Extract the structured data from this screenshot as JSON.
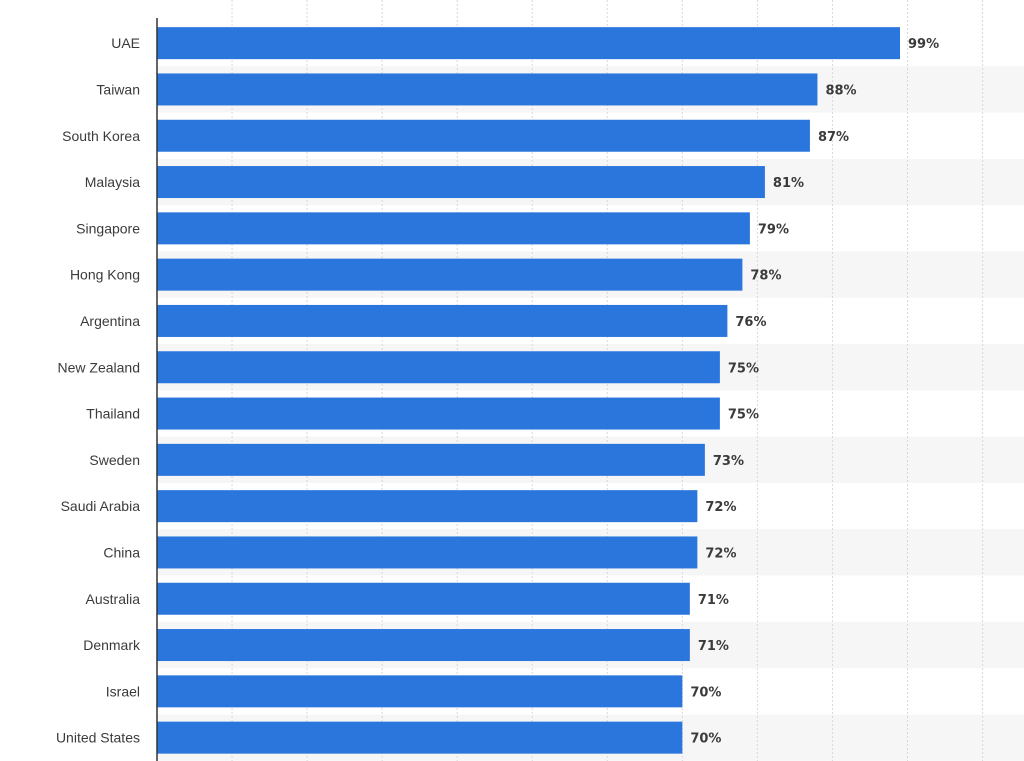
{
  "chart_data": {
    "type": "bar",
    "orientation": "horizontal",
    "categories": [
      "UAE",
      "Taiwan",
      "South Korea",
      "Malaysia",
      "Singapore",
      "Hong Kong",
      "Argentina",
      "New Zealand",
      "Thailand",
      "Sweden",
      "Saudi Arabia",
      "China",
      "Australia",
      "Denmark",
      "Israel",
      "United States"
    ],
    "values": [
      99,
      88,
      87,
      81,
      79,
      78,
      76,
      75,
      75,
      73,
      72,
      72,
      71,
      71,
      70,
      70
    ],
    "value_labels": [
      "99%",
      "88%",
      "87%",
      "81%",
      "79%",
      "78%",
      "76%",
      "75%",
      "75%",
      "73%",
      "72%",
      "72%",
      "71%",
      "71%",
      "70%",
      "70%"
    ],
    "unit": "%",
    "xlim": [
      0,
      110
    ],
    "grid": true,
    "bar_color": "#2a76dd",
    "band_color": "#f6f6f6",
    "grid_color": "#d8d8d8",
    "axis_color": "#333333",
    "text_color": "#3b3b3b",
    "title": "",
    "xlabel": "",
    "ylabel": ""
  }
}
